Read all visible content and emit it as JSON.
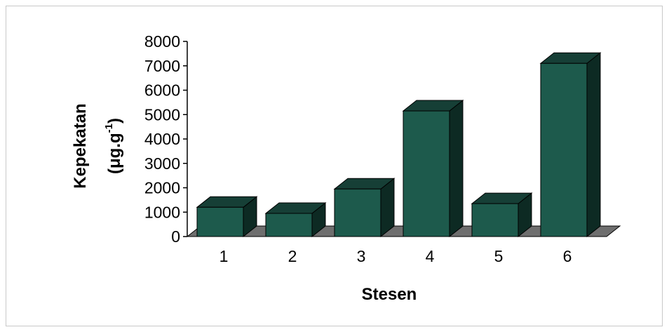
{
  "chart_data": {
    "type": "bar",
    "style": "3d-column",
    "categories": [
      "1",
      "2",
      "3",
      "4",
      "5",
      "6"
    ],
    "values": [
      1200,
      950,
      1950,
      5150,
      1350,
      7100
    ],
    "xlabel": "Stesen",
    "ylabel": "Kepekatan",
    "ylabel_unit_main": "(μg.g",
    "ylabel_unit_sup": "-1",
    "ylabel_unit_close": ")",
    "ylim": [
      0,
      8000
    ],
    "yticks": [
      "0",
      "1000",
      "2000",
      "3000",
      "4000",
      "5000",
      "6000",
      "7000",
      "8000"
    ],
    "grid": false,
    "legend": "none",
    "colors": {
      "bar_front": "#1d5a4c",
      "bar_top": "#163f36",
      "bar_side": "#0d2a23",
      "floor": "#6e6e6e",
      "outline": "#000000"
    }
  }
}
